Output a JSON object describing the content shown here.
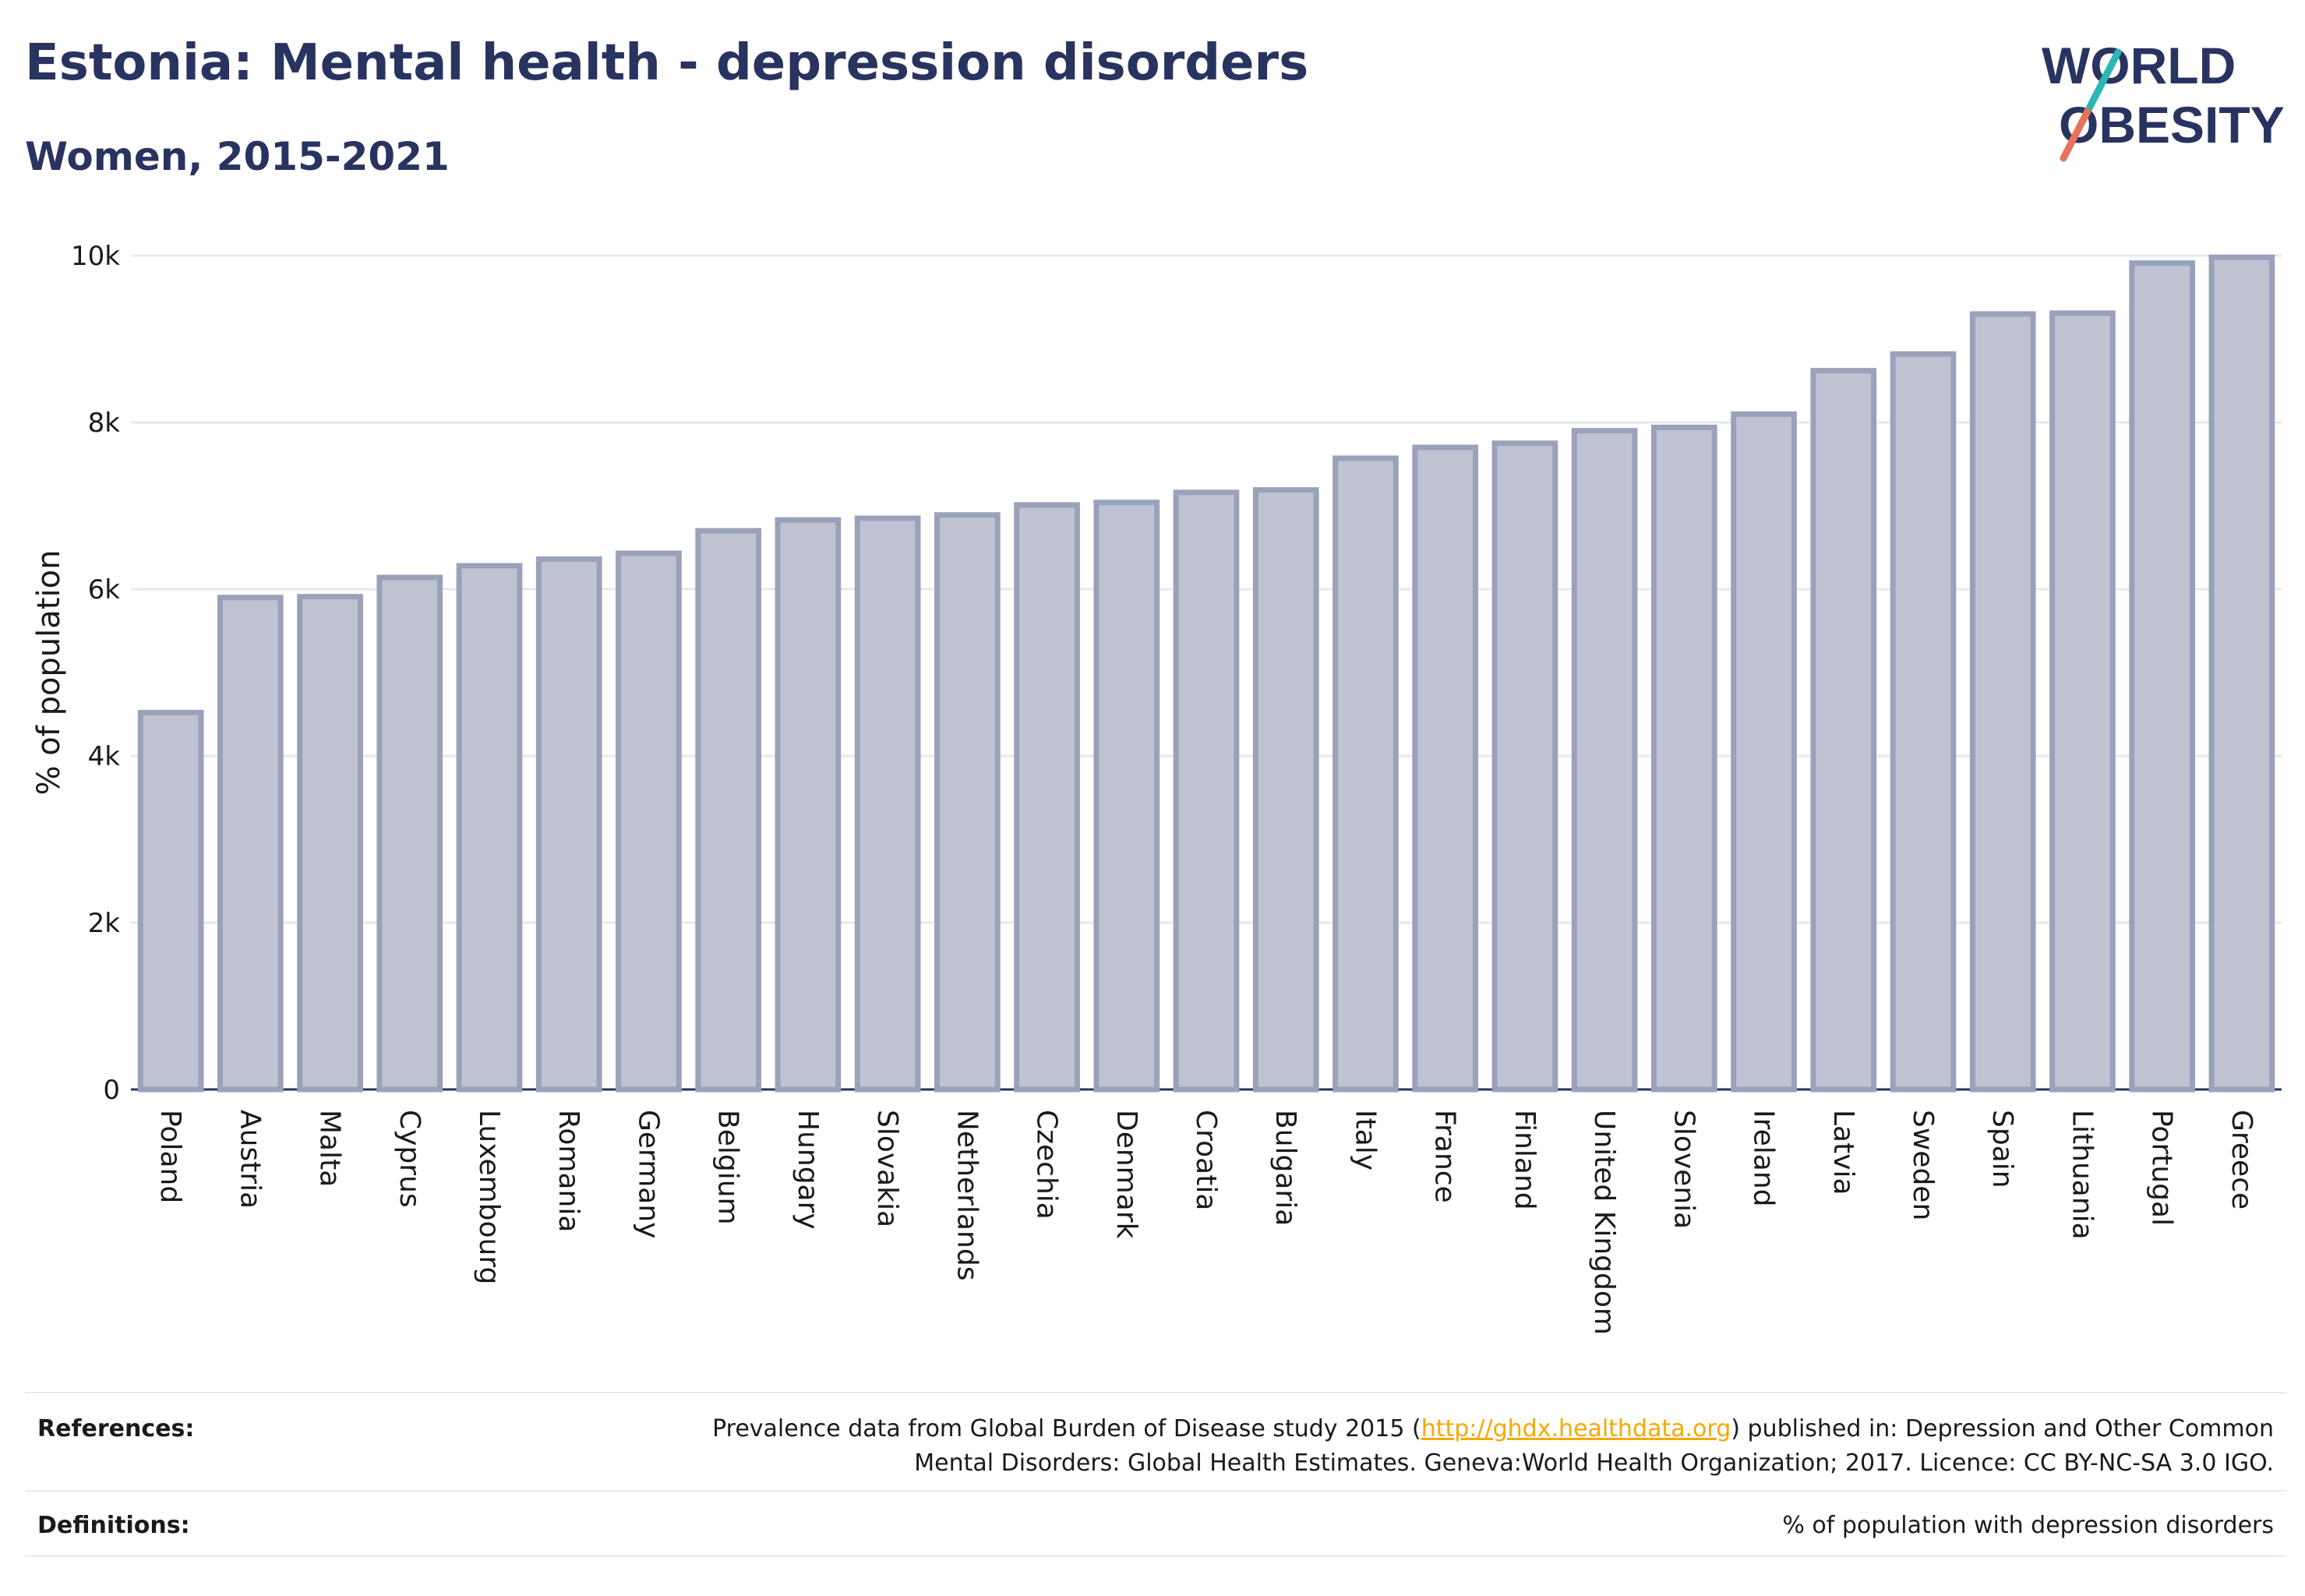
{
  "title": "Estonia: Mental health - depression disorders",
  "subtitle": "Women, 2015-2021",
  "logo": {
    "line1": "WORLD",
    "line2": "OBESITY"
  },
  "colors": {
    "bar_fill": "#bfc3d1",
    "bar_stroke": "#9aa1ba",
    "text": "#283360",
    "grid": "#e6e8ee"
  },
  "chart_data": {
    "type": "bar",
    "ylabel": "% of population",
    "ylim": [
      0,
      10000
    ],
    "yticks": [
      "0",
      "2k",
      "4k",
      "6k",
      "8k",
      "10k"
    ],
    "ytick_values": [
      0,
      2000,
      4000,
      6000,
      8000,
      10000
    ],
    "grid": true,
    "categories": [
      "Poland",
      "Austria",
      "Malta",
      "Cyprus",
      "Luxembourg",
      "Romania",
      "Germany",
      "Belgium",
      "Hungary",
      "Slovakia",
      "Netherlands",
      "Czechia",
      "Denmark",
      "Croatia",
      "Bulgaria",
      "Italy",
      "France",
      "Finland",
      "United Kingdom",
      "Slovenia",
      "Ireland",
      "Latvia",
      "Sweden",
      "Spain",
      "Lithuania",
      "Portugal",
      "Greece"
    ],
    "values": [
      4520,
      5900,
      5910,
      6140,
      6280,
      6360,
      6430,
      6700,
      6830,
      6850,
      6890,
      7010,
      7040,
      7160,
      7190,
      7570,
      7700,
      7750,
      7900,
      7940,
      8100,
      8620,
      8820,
      9300,
      9310,
      9910,
      9980
    ]
  },
  "footer": {
    "references_label": "References:",
    "references_pre": "Prevalence data from Global Burden of Disease study 2015 (",
    "references_link": "http://ghdx.healthdata.org",
    "references_post": ") published in: Depression and Other Common",
    "references_line2": "Mental Disorders: Global Health Estimates. Geneva:World Health Organization; 2017. Licence: CC BY-NC-SA 3.0 IGO.",
    "definitions_label": "Definitions:",
    "definitions_text": "% of population with depression disorders"
  }
}
